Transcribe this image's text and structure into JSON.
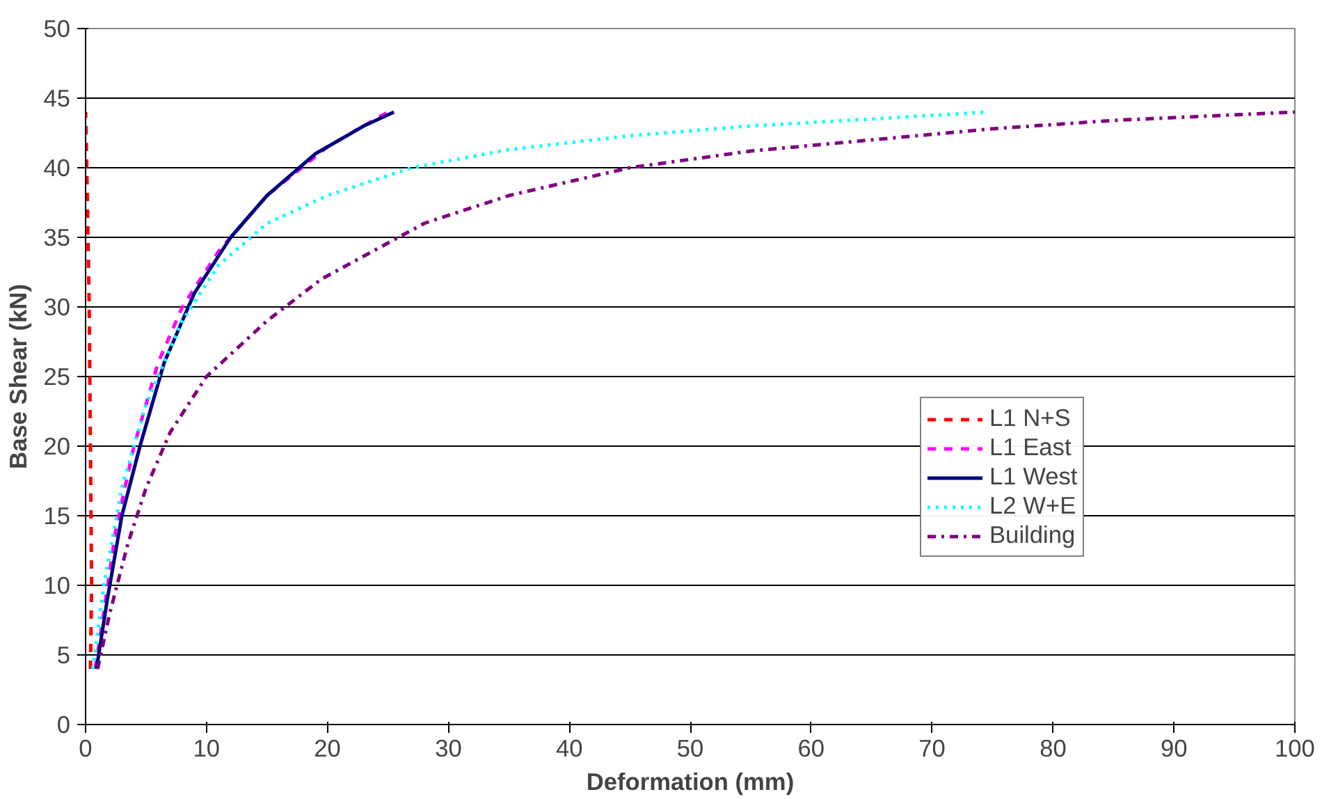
{
  "chart_data": {
    "type": "line",
    "xlabel": "Deformation (mm)",
    "ylabel": "Base Shear (kN)",
    "xlim": [
      0,
      100
    ],
    "ylim": [
      0,
      50
    ],
    "xticks": [
      0,
      10,
      20,
      30,
      40,
      50,
      60,
      70,
      80,
      90,
      100
    ],
    "yticks": [
      0,
      5,
      10,
      15,
      20,
      25,
      30,
      35,
      40,
      45,
      50
    ],
    "grid": "y",
    "legend": "right",
    "marker": "none",
    "series": [
      {
        "name": "L1 N+S",
        "color": "#ff0000",
        "line_style": "dashed",
        "x": [
          0.4,
          0.5,
          0.4,
          0.3,
          0.1,
          0
        ],
        "values": [
          4,
          10,
          20,
          30,
          40,
          44
        ]
      },
      {
        "name": "L1 East",
        "color": "#ff00ff",
        "line_style": "dashed",
        "x": [
          0.8,
          1.5,
          2.5,
          4,
          6,
          8,
          11,
          15,
          20,
          25
        ],
        "values": [
          4,
          8,
          14,
          20,
          26,
          30,
          34,
          38,
          41.5,
          44
        ]
      },
      {
        "name": "L1 West",
        "color": "#000080",
        "line_style": "solid",
        "x": [
          0.9,
          1.8,
          3,
          4.5,
          6.5,
          9,
          12,
          15,
          19,
          23,
          25.5
        ],
        "values": [
          4,
          9,
          15,
          20,
          26,
          31,
          35,
          38,
          41,
          43,
          44
        ]
      },
      {
        "name": "L2 W+E",
        "color": "#00ffff",
        "line_style": "dotted",
        "x": [
          0.6,
          1.5,
          3,
          5,
          8,
          11,
          15,
          20,
          27,
          35,
          45,
          55,
          65,
          74.5
        ],
        "values": [
          4,
          10,
          17,
          23,
          29,
          33,
          36,
          38,
          40,
          41.3,
          42.3,
          43,
          43.5,
          44
        ]
      },
      {
        "name": "Building",
        "color": "#800080",
        "line_style": "dashdot",
        "x": [
          1,
          2,
          3.5,
          5,
          7,
          10,
          15,
          19.5,
          28,
          35,
          45,
          55,
          65,
          75,
          85,
          100
        ],
        "values": [
          4,
          8,
          13,
          17,
          21,
          25,
          29,
          32,
          36,
          38,
          40,
          41.2,
          42,
          42.8,
          43.4,
          44
        ]
      }
    ]
  }
}
